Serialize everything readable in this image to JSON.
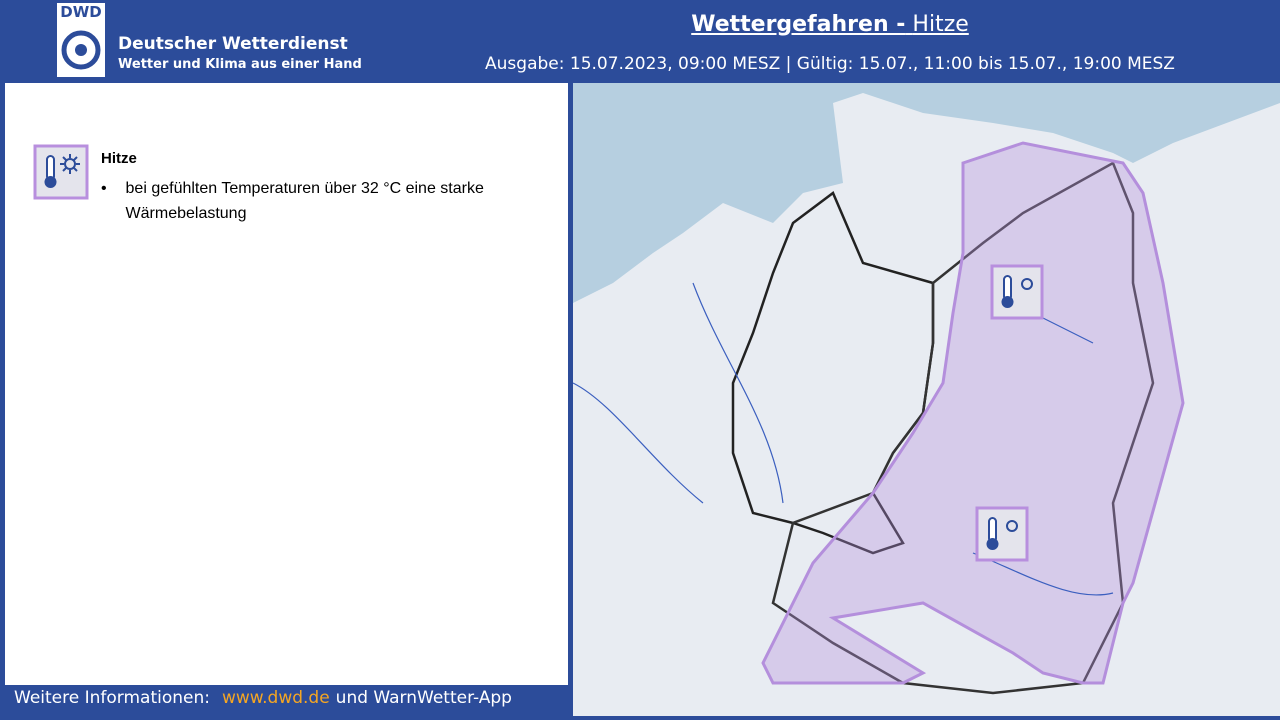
{
  "header": {
    "logo": "DWD",
    "org_name": "Deutscher Wetterdienst",
    "org_slogan": "Wetter und Klima aus einer Hand",
    "title": [
      "Wettergefahren -",
      "Hitze"
    ],
    "issue": "Ausgabe: 15.07.2023, 09:00 MESZ | Gültig: 15.07., 11:00 bis 15.07., 19:00 MESZ"
  },
  "legend": {
    "items": [
      {
        "label": "Hitze",
        "bullet": "bei gefühlten Temperaturen über 32 °C eine starke Wärmebelastung"
      }
    ]
  },
  "footer": {
    "text": "Weitere Informationen:",
    "link": "www.dwd.de",
    "suffix": "und WarnWetter-App"
  }
}
